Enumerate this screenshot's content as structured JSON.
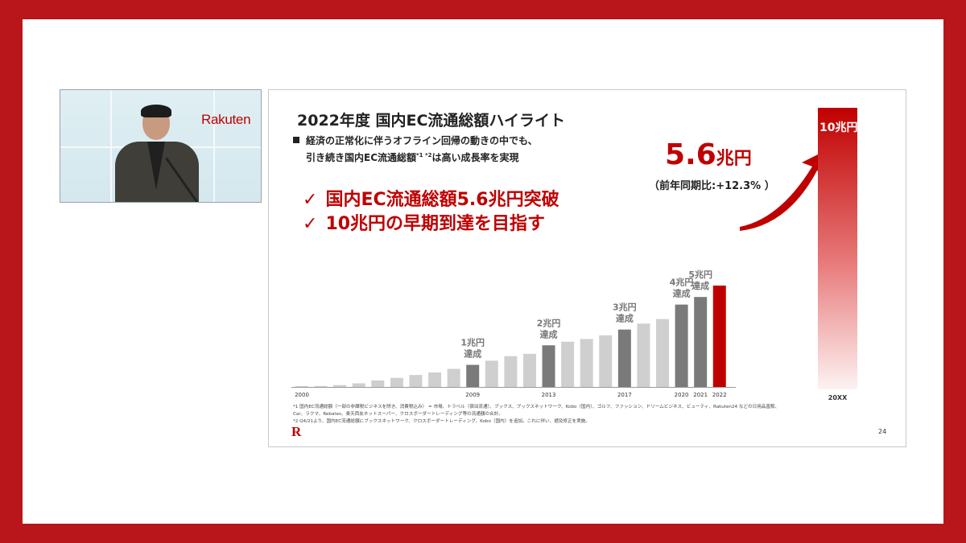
{
  "video": {
    "logo": "Rakuten"
  },
  "slide": {
    "title": "2022年度 国内EC流通総額ハイライト",
    "bullet_line1": "経済の正常化に伴うオフライン回帰の動きの中でも、",
    "bullet_line2_a": "引き続き国内EC流通総額",
    "bullet_line2_sup": "*1 *2",
    "bullet_line2_b": "は高い成長率を実現",
    "check_mark": "✓",
    "check1": "国内EC流通総額5.6兆円突破",
    "check2": "10兆円の早期到達を目指す",
    "highlight_num": "5.6",
    "highlight_unit": "兆円",
    "yoy": "（前年同期比:+12.3% ）",
    "target_label": "10兆円",
    "target_year": "20XX",
    "footnote1": "*1 国内EC流通総額（一部の非課税ビジネスを除き、消費税込み） = 市場、トラベル（宿泊流通）、ブックス、ブックスネットワーク、Kobo（国内）、ゴルフ、ファッション、ドリームビジネス、ビューティ、Rakuten24 などの日用品直販、",
    "footnote2": "Car、ラクマ、Rebates、楽天西友ネットスーパー、クロスボーダートレーディング等の流通額の合計。",
    "footnote3": "*2 Q4/21より、国内EC流通総額にブックスネットワーク、クロスボーダートレーディング、Kobo（国内）を追加。これに伴い、遡及修正を実施。",
    "logo": "R",
    "page_number": "24"
  },
  "colors": {
    "brand": "#bf0000",
    "milestone": "#7a7a7a",
    "regular": "#cfcfcf",
    "frame": "#b8161a"
  },
  "chart_data": {
    "type": "bar",
    "x": [
      2000,
      2001,
      2002,
      2003,
      2004,
      2005,
      2006,
      2007,
      2008,
      2009,
      2010,
      2011,
      2012,
      2013,
      2014,
      2015,
      2016,
      2017,
      2018,
      2019,
      2020,
      2021,
      2022
    ],
    "values": [
      0.01,
      0.05,
      0.1,
      0.2,
      0.36,
      0.5,
      0.66,
      0.8,
      1.0,
      1.22,
      1.45,
      1.7,
      1.83,
      2.3,
      2.5,
      2.65,
      2.85,
      3.17,
      3.5,
      3.75,
      4.55,
      4.97,
      5.6
    ],
    "unit": "兆円",
    "ylim": [
      0,
      10
    ],
    "tick_labels": [
      "2000",
      "2009",
      "2013",
      "2017",
      "2020",
      "2021",
      "2022"
    ],
    "milestones": [
      {
        "year": 2009,
        "label1": "1兆円",
        "label2": "達成"
      },
      {
        "year": 2013,
        "label1": "2兆円",
        "label2": "達成"
      },
      {
        "year": 2017,
        "label1": "3兆円",
        "label2": "達成"
      },
      {
        "year": 2020,
        "label1": "4兆円",
        "label2": "達成"
      },
      {
        "year": 2021,
        "label1": "5兆円",
        "label2": "達成"
      }
    ],
    "highlight_year": 2022,
    "target": {
      "label": "20XX",
      "value": 10
    }
  }
}
